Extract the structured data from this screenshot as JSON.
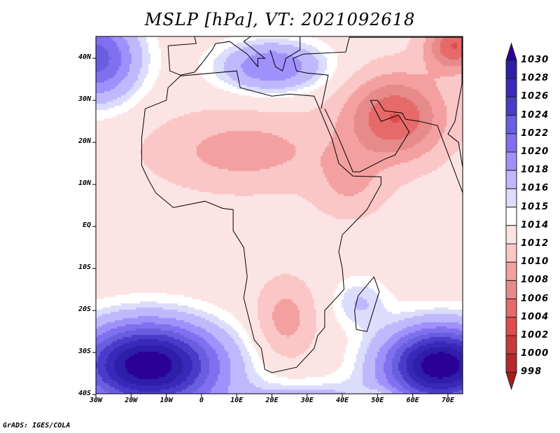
{
  "title": "MSLP [hPa], VT: 2021092618",
  "credit": "GrADS: IGES/COLA",
  "x_ticks": [
    "30W",
    "20W",
    "10W",
    "0",
    "10E",
    "20E",
    "30E",
    "40E",
    "50E",
    "60E",
    "70E"
  ],
  "y_ticks": [
    "40N",
    "30N",
    "20N",
    "10N",
    "EQ",
    "10S",
    "20S",
    "30S",
    "40S"
  ],
  "colorbar": {
    "labels": [
      "1030",
      "1028",
      "1026",
      "1024",
      "1022",
      "1020",
      "1018",
      "1016",
      "1015",
      "1014",
      "1012",
      "1010",
      "1008",
      "1006",
      "1004",
      "1002",
      "1000",
      "998"
    ],
    "levels": [
      998,
      1000,
      1002,
      1004,
      1006,
      1008,
      1010,
      1012,
      1014,
      1015,
      1016,
      1018,
      1020,
      1022,
      1024,
      1026,
      1028,
      1030
    ],
    "colors": [
      "#a81c1c",
      "#b82828",
      "#c83a3a",
      "#e04c4c",
      "#e66a6a",
      "#e68a8a",
      "#f4a0a0",
      "#fac6c6",
      "#fde4e4",
      "#ffffff",
      "#dcdcfc",
      "#c0b8fc",
      "#a090fc",
      "#8070f0",
      "#6a5ee0",
      "#4a3cc8",
      "#3a28b8",
      "#2e1ea8",
      "#2a0096"
    ]
  }
}
